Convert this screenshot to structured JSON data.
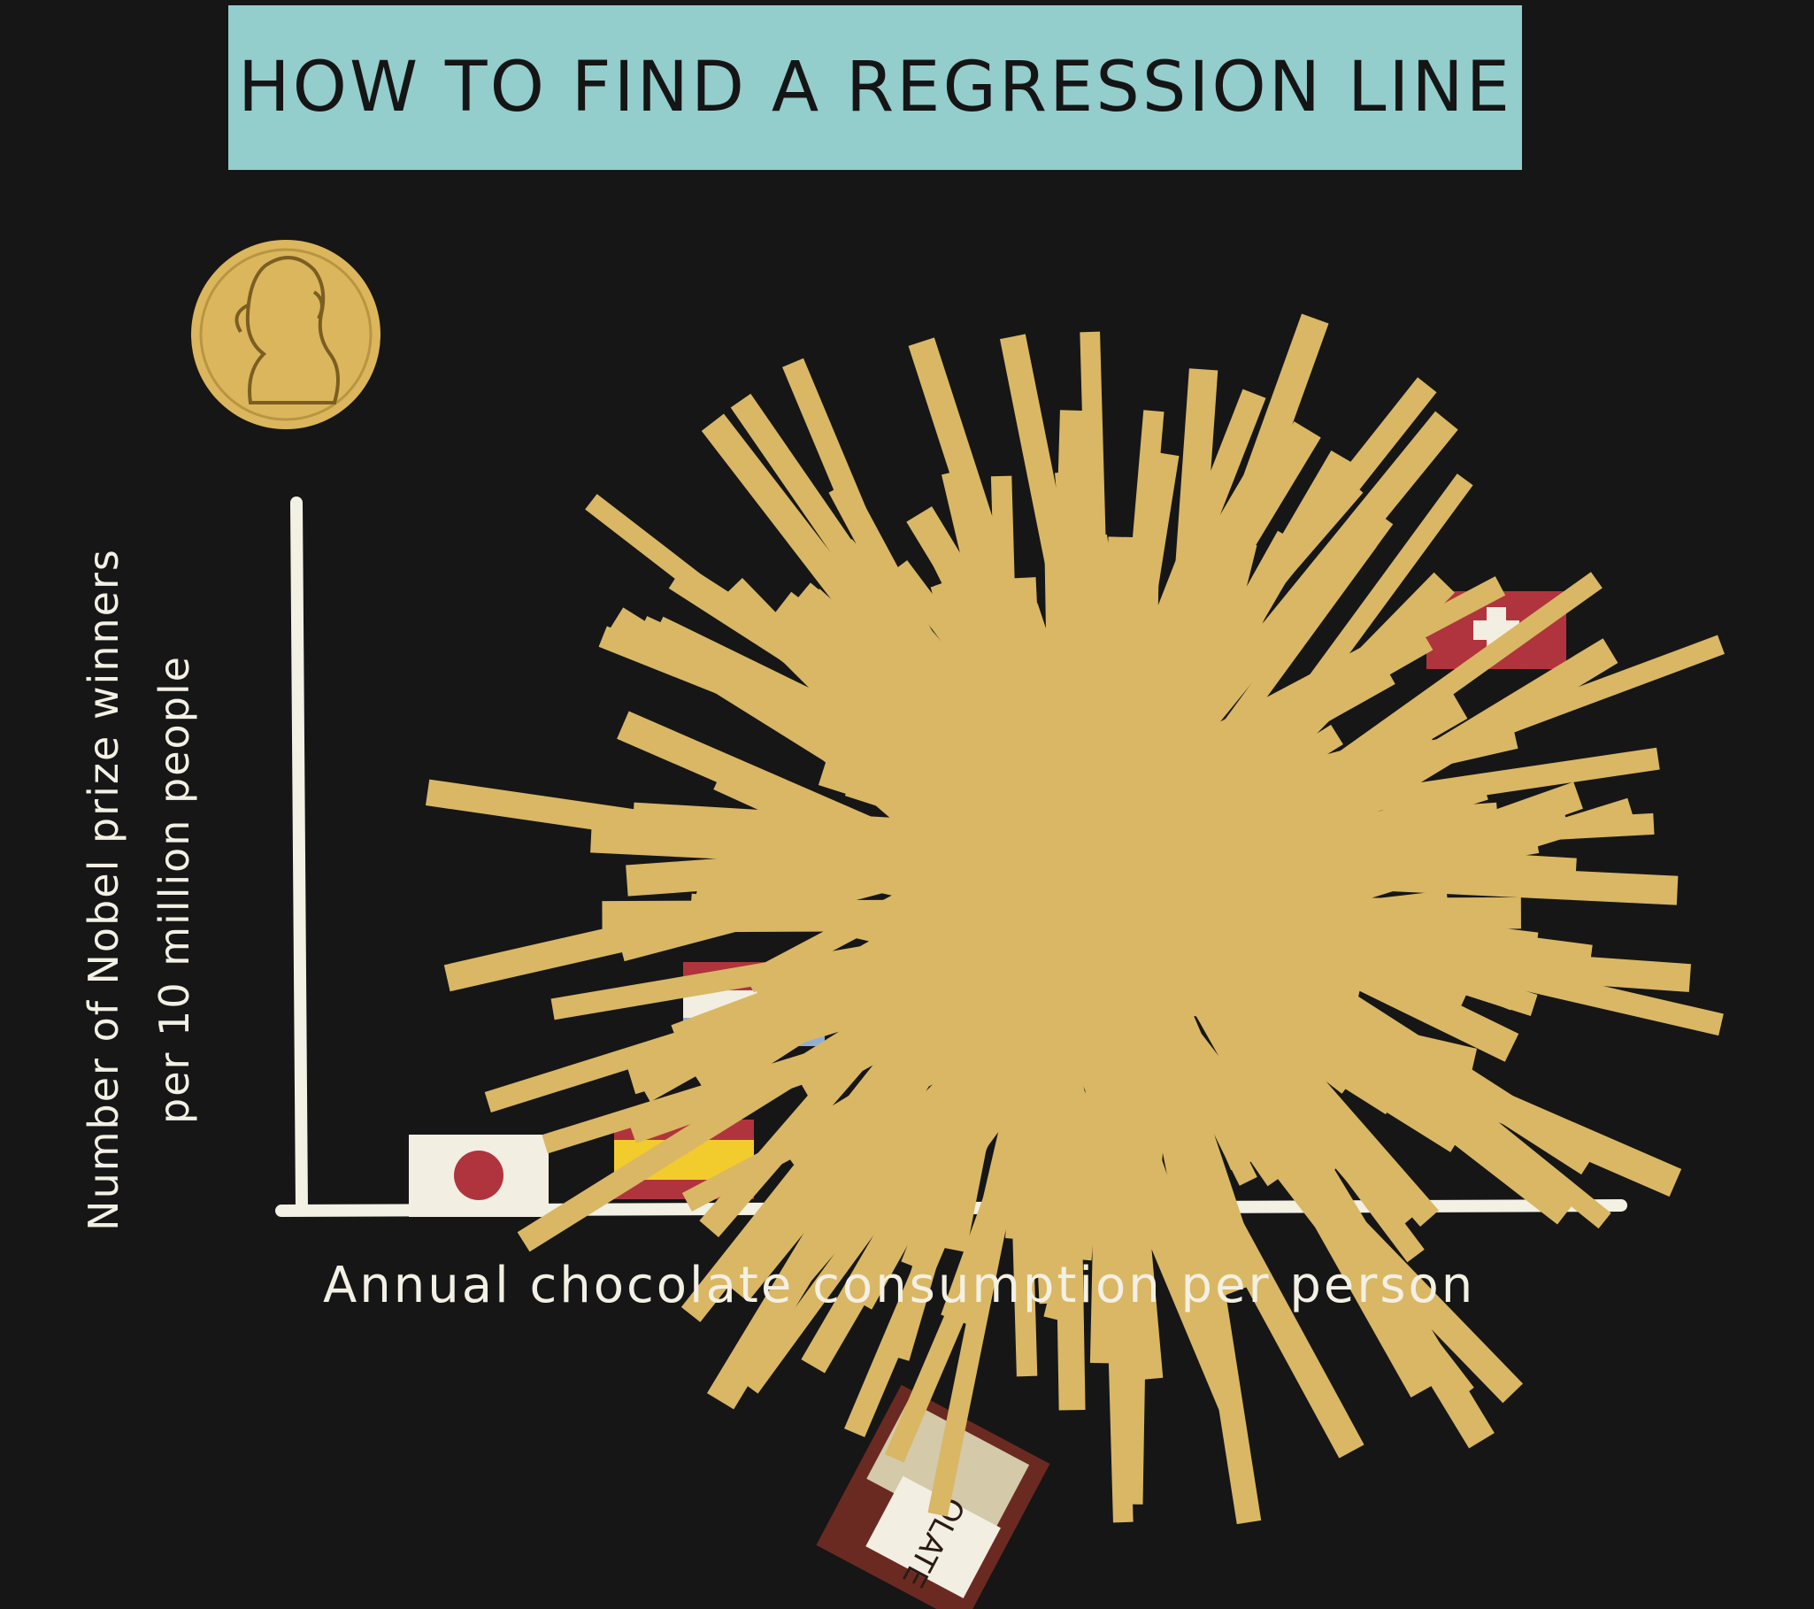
{
  "title": "HOW TO FIND A REGRESSION LINE",
  "y_axis_label": {
    "line1": "Number of Nobel prize winners",
    "line2": "per 10 million people"
  },
  "x_axis_label": "Annual chocolate consumption per person",
  "chocolate_wrapper_text": "OLATE",
  "colors": {
    "background": "#161616",
    "title_banner": "#93cdcc",
    "axis": "#f3f0e4",
    "spaghetti": "#d9b764",
    "medal": "#dcb65c",
    "flag_red": "#b0343d",
    "flag_blue": "#8eb0d6",
    "flag_yellow": "#f2cc2c"
  },
  "icons": [
    "nobel-medal-icon",
    "japan-flag-icon",
    "spain-flag-icon",
    "netherlands-flag-icon",
    "switzerland-flag-icon",
    "chocolate-bar-icon"
  ]
}
